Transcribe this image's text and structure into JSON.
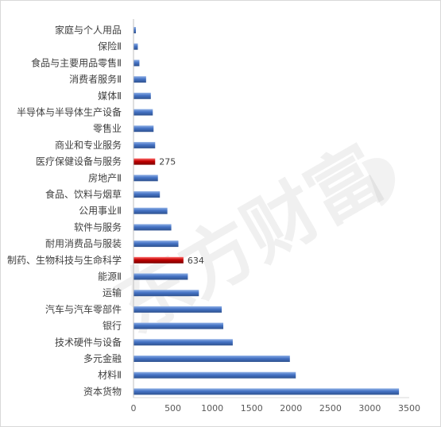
{
  "chart_data": {
    "type": "bar",
    "orientation": "horizontal",
    "categories": [
      "家庭与个人用品",
      "保险Ⅱ",
      "食品与主要用品零售Ⅱ",
      "消费者服务Ⅱ",
      "媒体Ⅱ",
      "半导体与半导体生产设备",
      "零售业",
      "商业和专业服务",
      "医疗保健设备与服务",
      "房地产Ⅱ",
      "食品、饮料与烟草",
      "公用事业Ⅱ",
      "软件与服务",
      "耐用消费品与服装",
      "制药、生物科技与生命科学",
      "能源Ⅱ",
      "运输",
      "汽车与汽车零部件",
      "银行",
      "技术硬件与设备",
      "多元金融",
      "材料Ⅱ",
      "资本货物"
    ],
    "values": [
      30,
      55,
      75,
      160,
      220,
      245,
      255,
      275,
      275,
      310,
      335,
      430,
      480,
      570,
      634,
      690,
      830,
      1120,
      1140,
      1260,
      1985,
      2060,
      3370
    ],
    "highlight": {
      "医疗保健设备与服务": "#c00000",
      "制药、生物科技与生命科学": "#c00000"
    },
    "data_labels": {
      "医疗保健设备与服务": "275",
      "制药、生物科技与生命科学": "634"
    },
    "bar_color": "#4472c4",
    "xlim": [
      0,
      3500
    ],
    "xticks": [
      "0",
      "500",
      "1000",
      "1500",
      "2000",
      "2500",
      "3000",
      "3500"
    ],
    "grid": false,
    "legend": "none"
  },
  "watermark": "东方财富"
}
